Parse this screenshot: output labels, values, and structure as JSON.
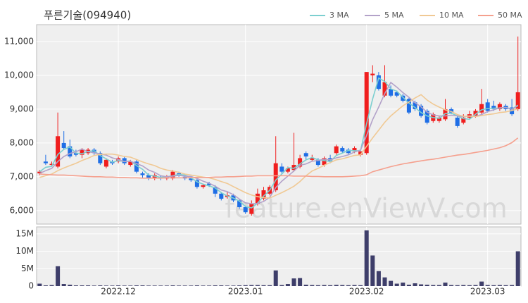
{
  "chart_data": [
    {
      "type": "candlestick",
      "title": "푸른기술(094940)",
      "watermark": "feature.enViewV.com",
      "up_color": "#f01e1e",
      "down_color": "#1e6ee6",
      "legend": "upper right",
      "grid": true,
      "ylim": [
        5600,
        11500
      ],
      "yticks": [
        {
          "value": 6000,
          "label": "6,000"
        },
        {
          "value": 7000,
          "label": "7,000"
        },
        {
          "value": 8000,
          "label": "8,000"
        },
        {
          "value": 9000,
          "label": "9,000"
        },
        {
          "value": 10000,
          "label": "10,000"
        },
        {
          "value": 11000,
          "label": "11,000"
        }
      ],
      "open": [
        7100,
        7450,
        7350,
        7300,
        8000,
        7900,
        7700,
        7650,
        7700,
        7800,
        7700,
        7300,
        7450,
        7450,
        7550,
        7350,
        7450,
        7100,
        7050,
        6950,
        7000,
        6950,
        6950,
        7100,
        7000,
        6950,
        6900,
        6700,
        6800,
        6700,
        6500,
        6400,
        6450,
        6300,
        6100,
        5900,
        6200,
        6350,
        6500,
        6600,
        7300,
        7150,
        7200,
        7300,
        7700,
        7500,
        7500,
        7350,
        7550,
        7700,
        7850,
        7800,
        7750,
        7650,
        7700,
        10000,
        10000,
        9400,
        9600,
        9500,
        9400,
        9300,
        9200,
        9100,
        8950,
        8650,
        8650,
        8700,
        9000,
        8750,
        8600,
        8750,
        8800,
        8900,
        9200,
        9100,
        9000,
        9100,
        9050,
        9000
      ],
      "high": [
        7200,
        7650,
        7450,
        8900,
        8350,
        8100,
        7800,
        7850,
        7850,
        7850,
        7750,
        7550,
        7500,
        7600,
        7600,
        7500,
        7500,
        7150,
        7100,
        7100,
        7050,
        7050,
        7200,
        7150,
        7050,
        7000,
        6950,
        6800,
        6850,
        6750,
        6550,
        6550,
        6500,
        6350,
        6150,
        6300,
        6650,
        6700,
        6750,
        8200,
        7400,
        7300,
        8300,
        7650,
        7750,
        7650,
        7550,
        7600,
        7650,
        7950,
        7900,
        7850,
        7900,
        7800,
        10100,
        10300,
        10100,
        10300,
        9700,
        9550,
        9450,
        9350,
        9250,
        9150,
        9000,
        8900,
        8800,
        9300,
        9050,
        8800,
        8850,
        8950,
        9000,
        9600,
        9300,
        9250,
        9200,
        9150,
        9300,
        11150
      ],
      "low": [
        7050,
        7350,
        7300,
        7250,
        7800,
        7550,
        7600,
        7550,
        7650,
        7650,
        7350,
        7250,
        7350,
        7400,
        7350,
        7300,
        7100,
        6950,
        6900,
        6900,
        6900,
        6900,
        6900,
        7000,
        6900,
        6850,
        6650,
        6650,
        6700,
        6400,
        6300,
        6350,
        6250,
        6050,
        5900,
        5850,
        6150,
        6300,
        6450,
        6550,
        7100,
        7100,
        7150,
        7250,
        7500,
        7450,
        7300,
        7300,
        7400,
        7650,
        7700,
        7650,
        7700,
        7600,
        7650,
        9800,
        9550,
        9350,
        9350,
        9350,
        9200,
        8850,
        8950,
        8750,
        8550,
        8600,
        8600,
        8650,
        8850,
        8450,
        8550,
        8700,
        8750,
        8850,
        8900,
        8950,
        8950,
        8950,
        8800,
        8950
      ],
      "close": [
        7150,
        7400,
        7380,
        8200,
        7850,
        7600,
        7650,
        7800,
        7800,
        7700,
        7400,
        7500,
        7400,
        7550,
        7400,
        7450,
        7150,
        7050,
        6950,
        7050,
        6950,
        7000,
        7150,
        7050,
        6950,
        6900,
        6700,
        6750,
        6750,
        6500,
        6350,
        6450,
        6300,
        6100,
        5950,
        6200,
        6500,
        6600,
        6700,
        7400,
        7150,
        7250,
        7350,
        7550,
        7600,
        7550,
        7350,
        7550,
        7450,
        7900,
        7750,
        7700,
        7850,
        7750,
        10100,
        10050,
        9600,
        9800,
        9400,
        9400,
        9250,
        8900,
        9000,
        8800,
        8600,
        8850,
        8750,
        9000,
        8900,
        8500,
        8750,
        8850,
        8950,
        9150,
        8950,
        9000,
        9150,
        9000,
        8850,
        9500
      ],
      "series": [
        {
          "name": "3 MA",
          "color": "#7ccfd0",
          "values": [
            7150,
            7280,
            7310,
            7660,
            7810,
            7880,
            7700,
            7680,
            7750,
            7770,
            7630,
            7530,
            7430,
            7480,
            7450,
            7470,
            7330,
            7220,
            7050,
            7020,
            6980,
            7000,
            7030,
            7070,
            7050,
            6970,
            6850,
            6780,
            6730,
            6670,
            6530,
            6430,
            6370,
            6280,
            6120,
            6080,
            6220,
            6430,
            6600,
            6900,
            7080,
            7270,
            7250,
            7380,
            7500,
            7570,
            7500,
            7480,
            7450,
            7630,
            7700,
            7780,
            7770,
            7770,
            8570,
            9300,
            9920,
            9820,
            9600,
            9530,
            9350,
            9180,
            9050,
            8900,
            8800,
            8750,
            8730,
            8870,
            8880,
            8800,
            8720,
            8700,
            8850,
            8980,
            9020,
            9030,
            9030,
            9050,
            9000,
            9120
          ]
        },
        {
          "name": "5 MA",
          "color": "#b3a2c9",
          "values": [
            7100,
            7180,
            7250,
            7450,
            7600,
            7690,
            7740,
            7820,
            7740,
            7710,
            7670,
            7640,
            7560,
            7510,
            7450,
            7460,
            7390,
            7320,
            7200,
            7130,
            7030,
            7000,
            7020,
            7040,
            7020,
            7010,
            6950,
            6870,
            6810,
            6720,
            6610,
            6560,
            6470,
            6340,
            6230,
            6200,
            6210,
            6270,
            6390,
            6680,
            6870,
            7020,
            7170,
            7340,
            7380,
            7460,
            7480,
            7520,
            7500,
            7560,
            7600,
            7650,
            7730,
            7790,
            8220,
            8690,
            9060,
            9460,
            9790,
            9650,
            9490,
            9350,
            9190,
            9070,
            8910,
            8830,
            8800,
            8800,
            8820,
            8800,
            8780,
            8800,
            8790,
            8840,
            8930,
            8980,
            9040,
            9050,
            8990,
            9100
          ]
        },
        {
          "name": "10 MA",
          "color": "#f0c994",
          "values": [
            6980,
            7030,
            7080,
            7180,
            7260,
            7330,
            7400,
            7480,
            7550,
            7630,
            7660,
            7670,
            7670,
            7640,
            7600,
            7580,
            7510,
            7440,
            7380,
            7330,
            7250,
            7200,
            7170,
            7130,
            7080,
            7050,
            7020,
            6990,
            6970,
            6920,
            6860,
            6800,
            6710,
            6620,
            6530,
            6460,
            6410,
            6380,
            6370,
            6450,
            6530,
            6620,
            6720,
            6860,
            7030,
            7170,
            7250,
            7340,
            7420,
            7500,
            7530,
            7580,
            7630,
            7650,
            7900,
            8150,
            8380,
            8610,
            8800,
            8950,
            9100,
            9210,
            9330,
            9430,
            9270,
            9150,
            9060,
            8980,
            8930,
            8840,
            8790,
            8790,
            8780,
            8810,
            8840,
            8860,
            8900,
            8920,
            8960,
            9010
          ]
        },
        {
          "name": "50 MA",
          "color": "#f5a08e",
          "values": [
            7080,
            7070,
            7060,
            7050,
            7050,
            7040,
            7030,
            7020,
            7010,
            7000,
            7000,
            6990,
            6990,
            6980,
            6980,
            6970,
            6970,
            6960,
            6960,
            6960,
            6960,
            6970,
            6970,
            6970,
            6970,
            6980,
            6980,
            6980,
            6980,
            6990,
            6990,
            7000,
            7000,
            7010,
            7020,
            7020,
            7030,
            7030,
            7030,
            7030,
            7030,
            7030,
            7020,
            7020,
            7020,
            7010,
            7010,
            7000,
            7000,
            7000,
            7000,
            7010,
            7020,
            7030,
            7060,
            7150,
            7200,
            7250,
            7300,
            7340,
            7380,
            7410,
            7440,
            7470,
            7500,
            7520,
            7550,
            7580,
            7610,
            7640,
            7660,
            7690,
            7720,
            7750,
            7780,
            7820,
            7860,
            7920,
            8010,
            8150
          ]
        }
      ]
    },
    {
      "type": "bar",
      "color": "#3e3e6a",
      "grid": true,
      "ylim": [
        0,
        17000000
      ],
      "yticks": [
        0,
        {
          "value": 5000000,
          "label": "5M"
        },
        {
          "value": 10000000,
          "label": "10M"
        },
        {
          "value": 15000000,
          "label": "15M"
        }
      ],
      "categories": [
        null,
        null,
        null,
        null,
        null,
        null,
        null,
        null,
        null,
        null,
        null,
        null,
        null,
        "2022.12",
        null,
        null,
        null,
        null,
        null,
        null,
        null,
        null,
        null,
        null,
        null,
        null,
        null,
        null,
        null,
        null,
        null,
        null,
        null,
        null,
        "2023.01",
        null,
        null,
        null,
        null,
        null,
        null,
        null,
        null,
        null,
        null,
        null,
        null,
        null,
        null,
        null,
        null,
        null,
        null,
        null,
        "2023.02",
        null,
        null,
        null,
        null,
        null,
        null,
        null,
        null,
        null,
        null,
        null,
        null,
        null,
        null,
        null,
        null,
        null,
        null,
        null,
        "2023.03",
        null,
        null,
        null,
        null,
        null
      ],
      "values": [
        700000,
        200000,
        300000,
        5700000,
        600000,
        400000,
        200000,
        200000,
        200000,
        150000,
        200000,
        150000,
        150000,
        200000,
        150000,
        150000,
        200000,
        200000,
        150000,
        150000,
        150000,
        150000,
        200000,
        150000,
        150000,
        150000,
        200000,
        150000,
        150000,
        200000,
        200000,
        150000,
        150000,
        200000,
        250000,
        300000,
        300000,
        250000,
        250000,
        4500000,
        300000,
        600000,
        2200000,
        2300000,
        400000,
        300000,
        250000,
        300000,
        250000,
        350000,
        300000,
        250000,
        300000,
        250000,
        16000000,
        8800000,
        4300000,
        2500000,
        1500000,
        700000,
        1000000,
        400000,
        800000,
        500000,
        400000,
        300000,
        300000,
        1000000,
        300000,
        250000,
        300000,
        250000,
        300000,
        1300000,
        300000,
        250000,
        300000,
        250000,
        300000,
        10000000
      ]
    }
  ]
}
